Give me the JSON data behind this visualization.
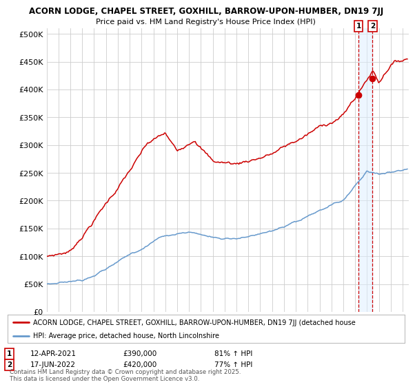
{
  "title_line1": "ACORN LODGE, CHAPEL STREET, GOXHILL, BARROW-UPON-HUMBER, DN19 7JJ",
  "title_line2": "Price paid vs. HM Land Registry's House Price Index (HPI)",
  "ylabel_ticks": [
    "£0",
    "£50K",
    "£100K",
    "£150K",
    "£200K",
    "£250K",
    "£300K",
    "£350K",
    "£400K",
    "£450K",
    "£500K"
  ],
  "ytick_values": [
    0,
    50000,
    100000,
    150000,
    200000,
    250000,
    300000,
    350000,
    400000,
    450000,
    500000
  ],
  "ylim": [
    0,
    510000
  ],
  "xlim_start": 1995.0,
  "xlim_end": 2025.5,
  "red_color": "#cc0000",
  "blue_color": "#6699cc",
  "blue_shade": "#ddeeff",
  "legend_label_red": "ACORN LODGE, CHAPEL STREET, GOXHILL, BARROW-UPON-HUMBER, DN19 7JJ (detached house",
  "legend_label_blue": "HPI: Average price, detached house, North Lincolnshire",
  "sale1_date": "12-APR-2021",
  "sale1_price": "£390,000",
  "sale1_pct": "81% ↑ HPI",
  "sale2_date": "17-JUN-2022",
  "sale2_price": "£420,000",
  "sale2_pct": "77% ↑ HPI",
  "footer": "Contains HM Land Registry data © Crown copyright and database right 2025.\nThis data is licensed under the Open Government Licence v3.0.",
  "bg_color": "#ffffff",
  "grid_color": "#cccccc",
  "sale1_year": 2021.28,
  "sale2_year": 2022.46,
  "sale1_val": 390000,
  "sale2_val": 420000
}
